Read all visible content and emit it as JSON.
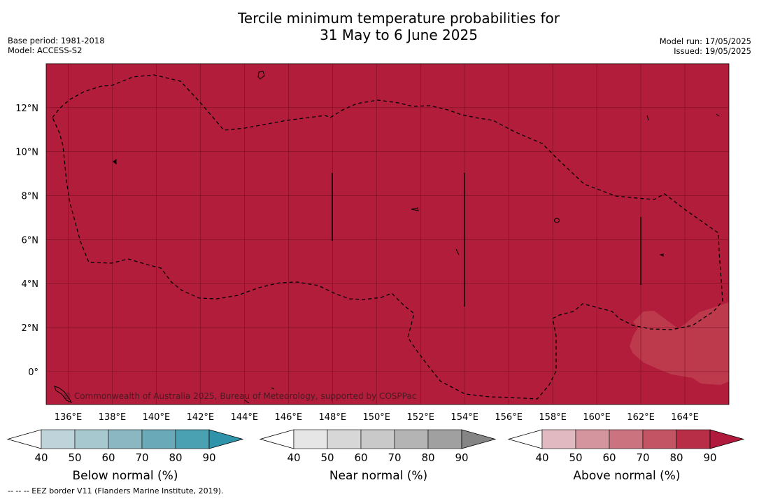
{
  "title_line1": "Tercile minimum temperature probabilities for",
  "title_line2": "31 May to 6 June 2025",
  "meta_left": [
    "Base period: 1981-2018",
    "Model: ACCESS-S2"
  ],
  "meta_right": [
    "Model run: 17/05/2025",
    "Issued: 19/05/2025"
  ],
  "map": {
    "lon_range": [
      135,
      166
    ],
    "lat_range": [
      -1.5,
      14
    ],
    "fill_color": "#b11d3b",
    "light_patch_color": "#bd3a4c",
    "x_ticks": [
      "136°E",
      "138°E",
      "140°E",
      "142°E",
      "144°E",
      "146°E",
      "148°E",
      "150°E",
      "152°E",
      "154°E",
      "156°E",
      "158°E",
      "160°E",
      "162°E",
      "164°E"
    ],
    "y_ticks": [
      "12°N",
      "10°N",
      "8°N",
      "6°N",
      "4°N",
      "2°N",
      "0°"
    ],
    "copyright": "© Commonwealth of Australia 2025, Bureau of Meteorology, supported by COSPPac"
  },
  "colorbars": [
    {
      "title": "Below normal (%)",
      "ticks": [
        "40",
        "50",
        "60",
        "70",
        "80",
        "90"
      ],
      "colors": [
        "#ffffff",
        "#bed3da",
        "#a7c8cf",
        "#8ab7c2",
        "#6aaab8",
        "#4aa1b2",
        "#2f93aa"
      ]
    },
    {
      "title": "Near normal (%)",
      "ticks": [
        "40",
        "50",
        "60",
        "70",
        "80",
        "90"
      ],
      "colors": [
        "#ffffff",
        "#e6e6e6",
        "#d7d7d7",
        "#c9c9c9",
        "#b4b4b4",
        "#a0a0a0",
        "#858585"
      ]
    },
    {
      "title": "Above normal (%)",
      "ticks": [
        "40",
        "50",
        "60",
        "70",
        "80",
        "90"
      ],
      "colors": [
        "#ffffff",
        "#e1b9c0",
        "#d5959e",
        "#cb737e",
        "#c25464",
        "#b82e47",
        "#b01a3c"
      ]
    }
  ],
  "footnote": "--  --  -- EEZ border V11 (Flanders Marine Institute, 2019)."
}
